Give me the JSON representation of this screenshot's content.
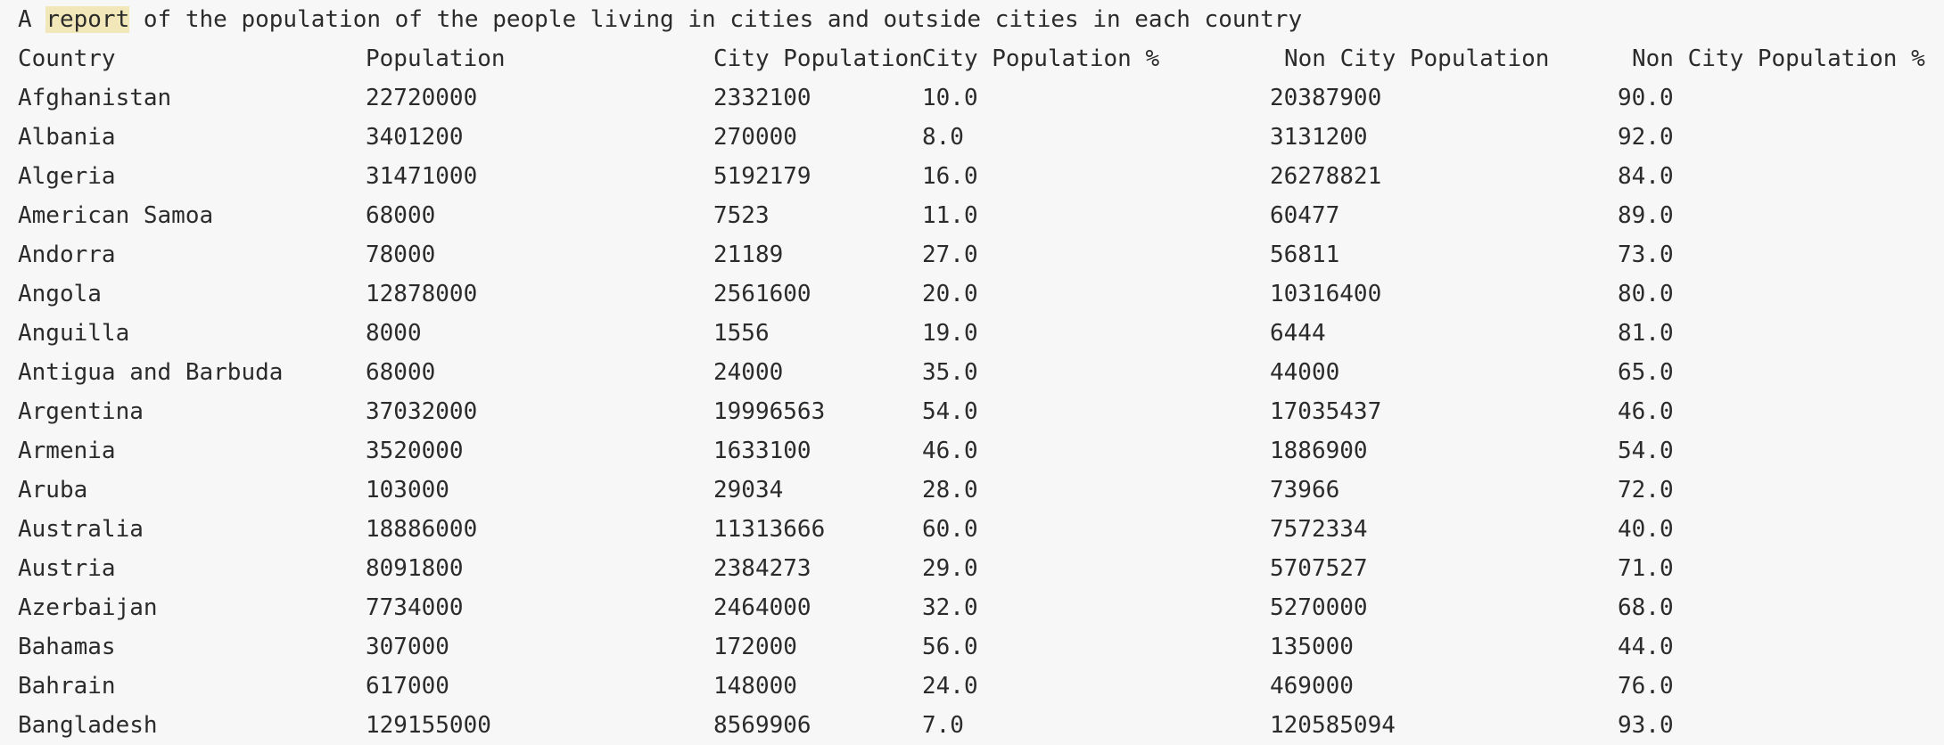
{
  "report": {
    "title_prefix": "A ",
    "title_highlight": "report",
    "title_suffix": " of the population of the people living in cities and outside cities in each country"
  },
  "table": {
    "headers": [
      "Country",
      "Population",
      "City Population",
      "City Population %",
      "Non City Population",
      "Non City Population %"
    ],
    "rows": [
      [
        "Afghanistan",
        "22720000",
        "2332100",
        "10.0",
        "20387900",
        "90.0"
      ],
      [
        "Albania",
        "3401200",
        "270000",
        "8.0",
        "3131200",
        "92.0"
      ],
      [
        "Algeria",
        "31471000",
        "5192179",
        "16.0",
        "26278821",
        "84.0"
      ],
      [
        "American Samoa",
        "68000",
        "7523",
        "11.0",
        "60477",
        "89.0"
      ],
      [
        "Andorra",
        "78000",
        "21189",
        "27.0",
        "56811",
        "73.0"
      ],
      [
        "Angola",
        "12878000",
        "2561600",
        "20.0",
        "10316400",
        "80.0"
      ],
      [
        "Anguilla",
        "8000",
        "1556",
        "19.0",
        "6444",
        "81.0"
      ],
      [
        "Antigua and Barbuda",
        "68000",
        "24000",
        "35.0",
        "44000",
        "65.0"
      ],
      [
        "Argentina",
        "37032000",
        "19996563",
        "54.0",
        "17035437",
        "46.0"
      ],
      [
        "Armenia",
        "3520000",
        "1633100",
        "46.0",
        "1886900",
        "54.0"
      ],
      [
        "Aruba",
        "103000",
        "29034",
        "28.0",
        "73966",
        "72.0"
      ],
      [
        "Australia",
        "18886000",
        "11313666",
        "60.0",
        "7572334",
        "40.0"
      ],
      [
        "Austria",
        "8091800",
        "2384273",
        "29.0",
        "5707527",
        "71.0"
      ],
      [
        "Azerbaijan",
        "7734000",
        "2464000",
        "32.0",
        "5270000",
        "68.0"
      ],
      [
        "Bahamas",
        "307000",
        "172000",
        "56.0",
        "135000",
        "44.0"
      ],
      [
        "Bahrain",
        "617000",
        "148000",
        "24.0",
        "469000",
        "76.0"
      ],
      [
        "Bangladesh",
        "129155000",
        "8569906",
        "7.0",
        "120585094",
        "93.0"
      ]
    ]
  }
}
